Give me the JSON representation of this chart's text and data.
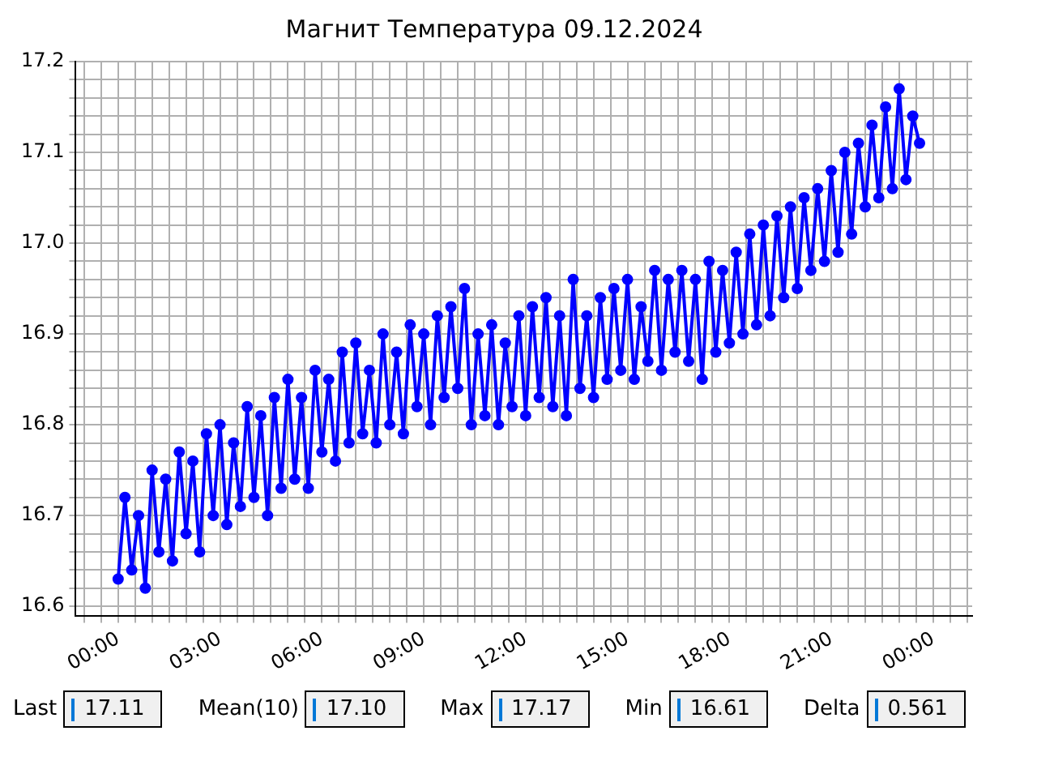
{
  "chart_data": {
    "type": "line",
    "title": "Магнит Температура 09.12.2024",
    "x": [
      0,
      0.2,
      0.4,
      0.6,
      0.8,
      1,
      1.2,
      1.4,
      1.6,
      1.8,
      2,
      2.2,
      2.4,
      2.6,
      2.8,
      3,
      3.2,
      3.4,
      3.6,
      3.8,
      4,
      4.2,
      4.4,
      4.6,
      4.8,
      5,
      5.2,
      5.4,
      5.6,
      5.8,
      6,
      6.2,
      6.4,
      6.6,
      6.8,
      7,
      7.2,
      7.4,
      7.6,
      7.8,
      8,
      8.2,
      8.4,
      8.6,
      8.8,
      9,
      9.2,
      9.4,
      9.6,
      9.8,
      10,
      10.2,
      10.4,
      10.6,
      10.8,
      11,
      11.2,
      11.4,
      11.6,
      11.8,
      12,
      12.2,
      12.4,
      12.6,
      12.8,
      13,
      13.2,
      13.4,
      13.6,
      13.8,
      14,
      14.2,
      14.4,
      14.6,
      14.8,
      15,
      15.2,
      15.4,
      15.6,
      15.8,
      16,
      16.2,
      16.4,
      16.6,
      16.8,
      17,
      17.2,
      17.4,
      17.6,
      17.8,
      18,
      18.2,
      18.4,
      18.6,
      18.8,
      19,
      19.2,
      19.4,
      19.6,
      19.8,
      20,
      20.2,
      20.4,
      20.6,
      20.8,
      21,
      21.2,
      21.4,
      21.6,
      21.8,
      22,
      22.2,
      22.4,
      22.6,
      22.8,
      23,
      23.2,
      23.4,
      23.6
    ],
    "series": [
      {
        "color": "#0000ff",
        "values": [
          16.63,
          16.72,
          16.64,
          16.7,
          16.62,
          16.75,
          16.66,
          16.74,
          16.65,
          16.77,
          16.68,
          16.76,
          16.66,
          16.79,
          16.7,
          16.8,
          16.69,
          16.78,
          16.71,
          16.82,
          16.72,
          16.81,
          16.7,
          16.83,
          16.73,
          16.85,
          16.74,
          16.83,
          16.73,
          16.86,
          16.77,
          16.85,
          16.76,
          16.88,
          16.78,
          16.89,
          16.79,
          16.86,
          16.78,
          16.9,
          16.8,
          16.88,
          16.79,
          16.91,
          16.82,
          16.9,
          16.8,
          16.92,
          16.83,
          16.93,
          16.84,
          16.95,
          16.8,
          16.9,
          16.81,
          16.91,
          16.8,
          16.89,
          16.82,
          16.92,
          16.81,
          16.93,
          16.83,
          16.94,
          16.82,
          16.92,
          16.81,
          16.96,
          16.84,
          16.92,
          16.83,
          16.94,
          16.85,
          16.95,
          16.86,
          16.96,
          16.85,
          16.93,
          16.87,
          16.97,
          16.86,
          16.96,
          16.88,
          16.97,
          16.87,
          16.96,
          16.85,
          16.98,
          16.88,
          16.97,
          16.89,
          16.99,
          16.9,
          17.01,
          16.91,
          17.02,
          16.92,
          17.03,
          16.94,
          17.04,
          16.95,
          17.05,
          16.97,
          17.06,
          16.98,
          17.08,
          16.99,
          17.1,
          17.01,
          17.11,
          17.04,
          17.13,
          17.05,
          17.15,
          17.06,
          17.17,
          17.07,
          17.14,
          17.11
        ]
      }
    ],
    "xlim": [
      -1.25,
      25.15
    ],
    "xticks": [
      {
        "value": -1,
        "label": null
      },
      {
        "value": -0.5,
        "label": null
      },
      {
        "value": 0,
        "label": "00:00"
      },
      {
        "value": 0.5,
        "label": null
      },
      {
        "value": 1,
        "label": null
      },
      {
        "value": 1.5,
        "label": null
      },
      {
        "value": 2,
        "label": null
      },
      {
        "value": 2.5,
        "label": null
      },
      {
        "value": 3,
        "label": "03:00"
      },
      {
        "value": 3.5,
        "label": null
      },
      {
        "value": 4,
        "label": null
      },
      {
        "value": 4.5,
        "label": null
      },
      {
        "value": 5,
        "label": null
      },
      {
        "value": 5.5,
        "label": null
      },
      {
        "value": 6,
        "label": "06:00"
      },
      {
        "value": 6.5,
        "label": null
      },
      {
        "value": 7,
        "label": null
      },
      {
        "value": 7.5,
        "label": null
      },
      {
        "value": 8,
        "label": null
      },
      {
        "value": 8.5,
        "label": null
      },
      {
        "value": 9,
        "label": "09:00"
      },
      {
        "value": 9.5,
        "label": null
      },
      {
        "value": 10,
        "label": null
      },
      {
        "value": 10.5,
        "label": null
      },
      {
        "value": 11,
        "label": null
      },
      {
        "value": 11.5,
        "label": null
      },
      {
        "value": 12,
        "label": "12:00"
      },
      {
        "value": 12.5,
        "label": null
      },
      {
        "value": 13,
        "label": null
      },
      {
        "value": 13.5,
        "label": null
      },
      {
        "value": 14,
        "label": null
      },
      {
        "value": 14.5,
        "label": null
      },
      {
        "value": 15,
        "label": "15:00"
      },
      {
        "value": 15.5,
        "label": null
      },
      {
        "value": 16,
        "label": null
      },
      {
        "value": 16.5,
        "label": null
      },
      {
        "value": 17,
        "label": null
      },
      {
        "value": 17.5,
        "label": null
      },
      {
        "value": 18,
        "label": "18:00"
      },
      {
        "value": 18.5,
        "label": null
      },
      {
        "value": 19,
        "label": null
      },
      {
        "value": 19.5,
        "label": null
      },
      {
        "value": 20,
        "label": null
      },
      {
        "value": 20.5,
        "label": null
      },
      {
        "value": 21,
        "label": "21:00"
      },
      {
        "value": 21.5,
        "label": null
      },
      {
        "value": 22,
        "label": null
      },
      {
        "value": 22.5,
        "label": null
      },
      {
        "value": 23,
        "label": null
      },
      {
        "value": 23.5,
        "label": null
      },
      {
        "value": 24,
        "label": "00:00"
      },
      {
        "value": 24.5,
        "label": null
      },
      {
        "value": 25,
        "label": null
      }
    ],
    "ylim": [
      16.589,
      17.2
    ],
    "yticks": [
      16.6,
      {
        "value": 16.62,
        "label": null
      },
      {
        "value": 16.64,
        "label": null
      },
      {
        "value": 16.66,
        "label": null
      },
      {
        "value": 16.68,
        "label": null
      },
      16.7,
      {
        "value": 16.72,
        "label": null
      },
      {
        "value": 16.74,
        "label": null
      },
      {
        "value": 16.76,
        "label": null
      },
      {
        "value": 16.78,
        "label": null
      },
      16.8,
      {
        "value": 16.82,
        "label": null
      },
      {
        "value": 16.84,
        "label": null
      },
      {
        "value": 16.86,
        "label": null
      },
      {
        "value": 16.88,
        "label": null
      },
      16.9,
      {
        "value": 16.92,
        "label": null
      },
      {
        "value": 16.94,
        "label": null
      },
      {
        "value": 16.96,
        "label": null
      },
      {
        "value": 16.98,
        "label": null
      },
      {
        "value": 17,
        "label": "17.0"
      },
      {
        "value": 17.02,
        "label": null
      },
      {
        "value": 17.04,
        "label": null
      },
      {
        "value": 17.06,
        "label": null
      },
      {
        "value": 17.08,
        "label": null
      },
      17.1,
      {
        "value": 17.12,
        "label": null
      },
      {
        "value": 17.14,
        "label": null
      },
      {
        "value": 17.16,
        "label": null
      },
      {
        "value": 17.18,
        "label": null
      },
      17.2
    ],
    "grid": true,
    "legend": false,
    "marker": "circle",
    "line_style": "solid",
    "annotations": [
      "Last",
      "17.11",
      "Mean(10)",
      "17.10",
      "Max",
      "17.17",
      "Min",
      "16.61",
      "Delta",
      "0.561"
    ]
  }
}
